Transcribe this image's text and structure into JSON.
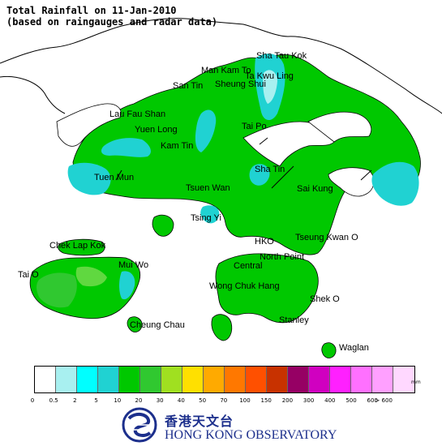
{
  "title": {
    "line1": "Total Rainfall on 11-Jan-2010",
    "line2": "(based on raingauges and radar data)"
  },
  "places": [
    {
      "id": "sha-tau-kok",
      "label": "Sha Tau Kok"
    },
    {
      "id": "man-kam-to",
      "label": "Man Kam To"
    },
    {
      "id": "ta-kwu-ling",
      "label": "Ta Kwu Ling"
    },
    {
      "id": "san-tin",
      "label": "San Tin"
    },
    {
      "id": "sheung-shui",
      "label": "Sheung Shui"
    },
    {
      "id": "lau-fau-shan",
      "label": "Lau Fau Shan"
    },
    {
      "id": "yuen-long",
      "label": "Yuen Long"
    },
    {
      "id": "tai-po",
      "label": "Tai Po"
    },
    {
      "id": "kam-tin",
      "label": "Kam Tin"
    },
    {
      "id": "tuen-mun",
      "label": "Tuen Mun"
    },
    {
      "id": "sha-tin",
      "label": "Sha Tin"
    },
    {
      "id": "tsuen-wan",
      "label": "Tsuen Wan"
    },
    {
      "id": "sai-kung",
      "label": "Sai Kung"
    },
    {
      "id": "tsing-yi",
      "label": "Tsing Yi"
    },
    {
      "id": "chek-lap-kok",
      "label": "Chek Lap Kok"
    },
    {
      "id": "hko",
      "label": "HKO"
    },
    {
      "id": "tseung-kwan-o",
      "label": "Tseung Kwan O"
    },
    {
      "id": "north-point",
      "label": "North Point"
    },
    {
      "id": "tai-o",
      "label": "Tai O"
    },
    {
      "id": "mui-wo",
      "label": "Mui Wo"
    },
    {
      "id": "central",
      "label": "Central"
    },
    {
      "id": "wong-chuk-hang",
      "label": "Wong Chuk Hang"
    },
    {
      "id": "shek-o",
      "label": "Shek O"
    },
    {
      "id": "cheung-chau",
      "label": "Cheung Chau"
    },
    {
      "id": "stanley",
      "label": "Stanley"
    },
    {
      "id": "waglan",
      "label": "Waglan"
    }
  ],
  "legend": {
    "unit": "mm",
    "colors": [
      "#ffffff",
      "#a8f0f0",
      "#00ffff",
      "#20d2d2",
      "#00c800",
      "#30c830",
      "#a0e020",
      "#ffe000",
      "#ffaa00",
      "#ff7800",
      "#ff5000",
      "#c83200",
      "#960064",
      "#d000c0",
      "#ff20ff",
      "#ff70ff",
      "#ffa0ff",
      "#ffd8ff"
    ],
    "ticks": [
      "0",
      "0.5",
      "2",
      "5",
      "10",
      "20",
      "30",
      "40",
      "50",
      "70",
      "100",
      "150",
      "200",
      "300",
      "400",
      "500",
      "600",
      "> 600"
    ]
  },
  "logo": {
    "chinese": "香港天文台",
    "english": "HONG KONG OBSERVATORY"
  },
  "map_colors": {
    "land_main": "#00c800",
    "land_light": "#30c830",
    "land_lighter": "#60d840",
    "cyan": "#20d2d2",
    "cyan_light": "#a8f0f0",
    "outline": "#000000",
    "border": "#000000"
  }
}
